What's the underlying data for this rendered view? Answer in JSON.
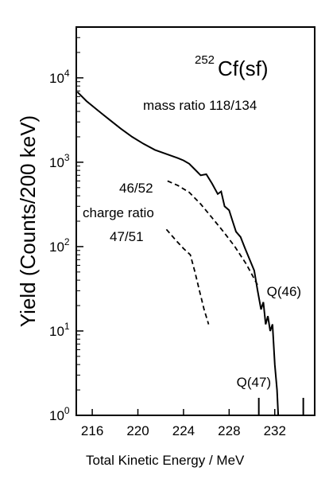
{
  "chart_data": {
    "type": "line",
    "title_superscript": "252",
    "title_main": "Cf(sf)",
    "subtitle": "mass ratio 118/134",
    "xlabel": "Total Kinetic Energy / MeV",
    "ylabel": "Yield (Counts/200 keV)",
    "xlim": [
      214.6,
      235.5
    ],
    "ylim": [
      1,
      40000
    ],
    "y_scale": "log",
    "x_ticks": [
      216,
      220,
      224,
      228,
      232
    ],
    "y_ticks": [
      {
        "value": 1,
        "base": "10",
        "exp": "0"
      },
      {
        "value": 10,
        "base": "10",
        "exp": "1"
      },
      {
        "value": 100,
        "base": "10",
        "exp": "2"
      },
      {
        "value": 1000,
        "base": "10",
        "exp": "3"
      },
      {
        "value": 10000,
        "base": "10",
        "exp": "4"
      }
    ],
    "charge_ratio_label": "charge ratio",
    "series": [
      {
        "style": "solid",
        "x": [
          214.7,
          215.5,
          216.5,
          217.5,
          218.5,
          219.5,
          220.5,
          221.5,
          222.5,
          223.5,
          224.0,
          224.5,
          225.0,
          225.5,
          226.0,
          226.5,
          227.0,
          227.3,
          227.6,
          228.0,
          228.3,
          228.6,
          229.0,
          229.4,
          229.8,
          230.2,
          230.5,
          230.8,
          231.0,
          231.2,
          231.4,
          231.6,
          231.8,
          232.0,
          232.2,
          232.3
        ],
        "y": [
          6800,
          5300,
          4100,
          3200,
          2500,
          2000,
          1650,
          1400,
          1250,
          1120,
          1050,
          960,
          820,
          700,
          720,
          560,
          420,
          450,
          300,
          270,
          200,
          150,
          130,
          95,
          70,
          52,
          30,
          18,
          22,
          12,
          15,
          10,
          12,
          4,
          2,
          1
        ]
      },
      {
        "style": "dashed",
        "label": "46/52",
        "x": [
          222.6,
          223.5,
          224.5,
          225.5,
          226.5,
          227.5,
          228.5,
          229.5,
          230.5
        ],
        "y": [
          600,
          530,
          440,
          320,
          220,
          150,
          100,
          62,
          35
        ]
      },
      {
        "style": "dashed",
        "label": "47/51",
        "x": [
          222.5,
          223.3,
          224.0,
          224.6,
          225.0,
          225.4,
          225.8,
          226.2
        ],
        "y": [
          160,
          120,
          95,
          80,
          50,
          30,
          18,
          12
        ]
      }
    ],
    "markers": [
      {
        "label": "Q(46)",
        "x": 234.5
      },
      {
        "label": "Q(47)",
        "x": 230.6
      }
    ]
  }
}
